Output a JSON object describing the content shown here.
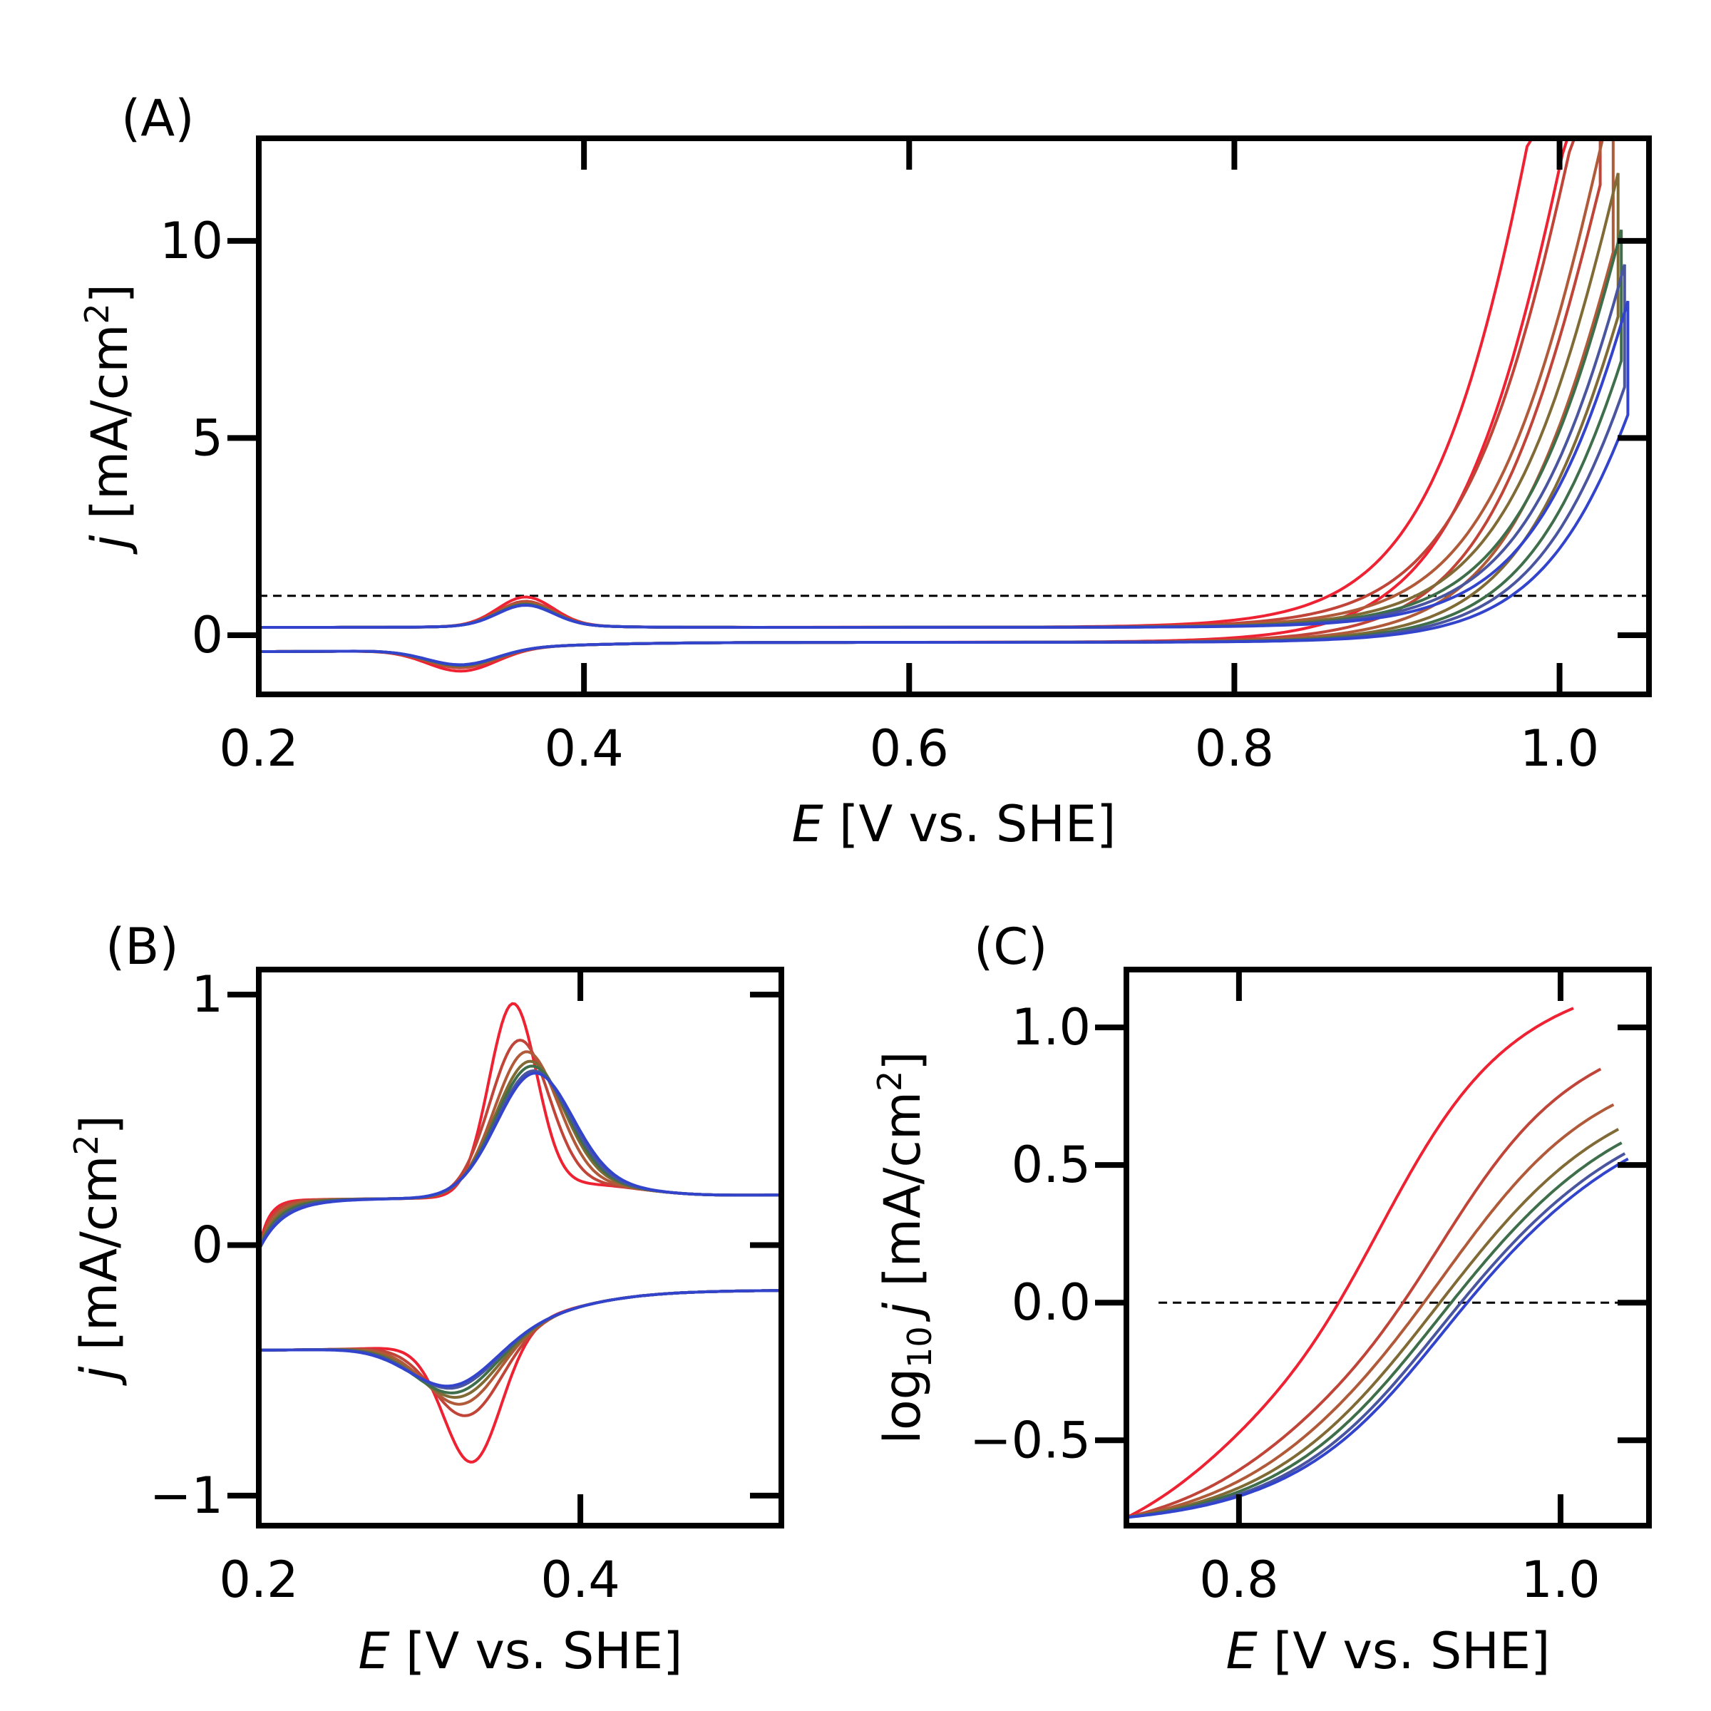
{
  "panels": {
    "A": {
      "label": "(A)",
      "xlabel_italic": "E",
      "xlabel_rest": " [V vs. SHE]",
      "ylabel_italic": "j",
      "ylabel_rest": " [mA/cm",
      "ylabel_sup": "2",
      "ylabel_close": "]"
    },
    "B": {
      "label": "(B)",
      "xlabel_italic": "E",
      "xlabel_rest": " [V vs. SHE]",
      "ylabel_italic": "j",
      "ylabel_rest": " [mA/cm",
      "ylabel_sup": "2",
      "ylabel_close": "]"
    },
    "C": {
      "label": "(C)",
      "xlabel_italic": "E",
      "xlabel_rest": " [V vs. SHE]",
      "ylabel_pre": "log",
      "ylabel_sub": "10",
      "ylabel_italic": "j",
      "ylabel_rest": " [mA/cm",
      "ylabel_sup": "2",
      "ylabel_close": "]"
    }
  },
  "colors": [
    "#ee2233",
    "#c04438",
    "#b05a3a",
    "#806a35",
    "#3f6e4a",
    "#4a55a0",
    "#3344cc"
  ],
  "chart_data": [
    {
      "panel": "A",
      "type": "line",
      "xlim": [
        0.2,
        1.055
      ],
      "ylim": [
        -1.5,
        12.6
      ],
      "xticks": [
        0.2,
        0.4,
        0.6,
        0.8,
        1.0
      ],
      "xtick_labels": [
        "0.2",
        "0.4",
        "0.6",
        "0.8",
        "1.0"
      ],
      "yticks": [
        0,
        5,
        10
      ],
      "ytick_labels": [
        "0",
        "5",
        "10"
      ],
      "reference_line_y": 1.0,
      "series_params": [
        {
          "e_max": 1.008,
          "onset": 0.862,
          "peak": 1.0
        },
        {
          "e_max": 1.025,
          "onset": 0.885,
          "peak": 0.85
        },
        {
          "e_max": 1.033,
          "onset": 0.902,
          "peak": 0.8
        },
        {
          "e_max": 1.036,
          "onset": 0.915,
          "peak": 0.76
        },
        {
          "e_max": 1.038,
          "onset": 0.925,
          "peak": 0.74
        },
        {
          "e_max": 1.04,
          "onset": 0.932,
          "peak": 0.72
        },
        {
          "e_max": 1.042,
          "onset": 0.94,
          "peak": 0.71
        }
      ]
    },
    {
      "panel": "B",
      "type": "line",
      "xlim": [
        0.2,
        0.525
      ],
      "ylim": [
        -1.12,
        1.1
      ],
      "xticks": [
        0.2,
        0.4
      ],
      "xtick_labels": [
        "0.2",
        "0.4"
      ],
      "yticks": [
        -1,
        0,
        1
      ],
      "ytick_labels": [
        "−1",
        "0",
        "1"
      ]
    },
    {
      "panel": "C",
      "type": "line",
      "xlim": [
        0.73,
        1.055
      ],
      "ylim": [
        -0.81,
        1.21
      ],
      "xticks": [
        0.8,
        1.0
      ],
      "xtick_labels": [
        "0.8",
        "1.0"
      ],
      "yticks": [
        -0.5,
        0.0,
        0.5,
        1.0
      ],
      "ytick_labels": [
        "−0.5",
        "0.0",
        "0.5",
        "1.0"
      ],
      "reference_line_y": 0.0
    }
  ]
}
